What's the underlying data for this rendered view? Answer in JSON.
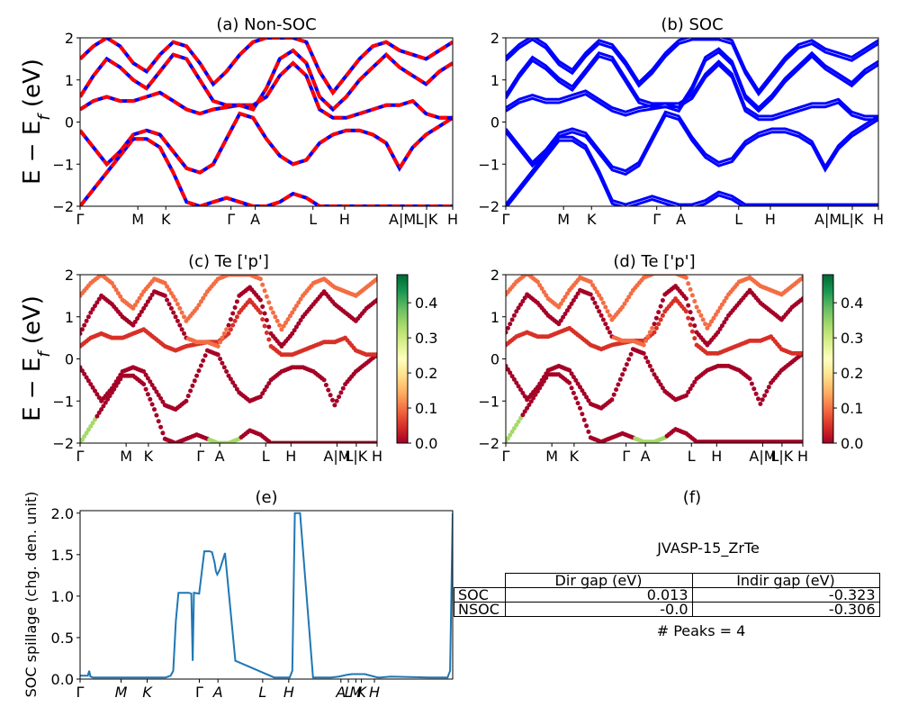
{
  "panels": {
    "a": {
      "title": "(a) Non-SOC"
    },
    "b": {
      "title": "(b) SOC"
    },
    "c": {
      "title": "(c)  Te ['p']"
    },
    "d": {
      "title": "(d) Te ['p']"
    },
    "e": {
      "title": "(e)"
    },
    "f": {
      "title": "(f)"
    }
  },
  "band_ylabel": "E − E_f (eV)",
  "band_yticks": [
    "2",
    "1",
    "0",
    "−1",
    "−2"
  ],
  "kpath_labels": [
    "Γ",
    "M",
    "K",
    "Γ",
    "A",
    "L",
    "H",
    "A|M",
    "L|K",
    "H"
  ],
  "colorbar_ticks": [
    "0.4",
    "0.3",
    "0.2",
    "0.1",
    "0.0"
  ],
  "colors": {
    "nonsoc_red": "#ff0000",
    "nonsoc_blue": "#0000ff",
    "soc_blue": "#0000ff",
    "spillage_line": "#1f77b4"
  },
  "info": {
    "material": "JVASP-15_ZrTe",
    "table_headers": [
      "Dir gap (eV)",
      "Indir gap (eV)"
    ],
    "rows": [
      {
        "label": "SOC",
        "dir": "0.013",
        "indir": "-0.323"
      },
      {
        "label": "NSOC",
        "dir": "-0.0",
        "indir": "-0.306"
      }
    ],
    "peaks": "# Peaks = 4"
  },
  "chart_data": [
    {
      "type": "line",
      "title": "(a) Non-SOC",
      "ylabel": "E − E_f (eV)",
      "ylim": [
        -2,
        2
      ],
      "x_ticks": [
        "Γ",
        "M",
        "K",
        "Γ",
        "A",
        "L",
        "H",
        "A|M",
        "L|K",
        "H"
      ],
      "series_note": "band energies in eV sampled at 29 k-points along the path",
      "series": [
        {
          "values": [
            -2.0,
            -1.6,
            -1.2,
            -0.8,
            -0.4,
            -0.4,
            -0.6,
            -1.2,
            -1.9,
            -2.0,
            -1.9,
            -1.8,
            -1.9,
            -2.0,
            -2.0,
            -1.9,
            -1.7,
            -1.8,
            -2.0,
            -2.0,
            -2.0,
            -2.0,
            -2.0,
            -2.0,
            -2.0,
            -2.0,
            -2.0,
            -2.0,
            -2.0
          ]
        },
        {
          "values": [
            -0.2,
            -0.6,
            -1.0,
            -0.7,
            -0.3,
            -0.2,
            -0.3,
            -0.7,
            -1.1,
            -1.2,
            -1.0,
            -0.4,
            0.2,
            0.1,
            -0.4,
            -0.8,
            -1.0,
            -0.9,
            -0.5,
            -0.3,
            -0.2,
            -0.2,
            -0.3,
            -0.5,
            -1.1,
            -0.6,
            -0.3,
            -0.1,
            0.1
          ]
        },
        {
          "values": [
            0.3,
            0.5,
            0.6,
            0.5,
            0.5,
            0.6,
            0.7,
            0.5,
            0.3,
            0.2,
            0.3,
            0.35,
            0.4,
            0.4,
            0.6,
            1.1,
            1.4,
            1.1,
            0.3,
            0.1,
            0.1,
            0.2,
            0.3,
            0.4,
            0.4,
            0.5,
            0.2,
            0.1,
            0.1
          ]
        },
        {
          "values": [
            0.6,
            1.1,
            1.5,
            1.3,
            1.0,
            0.8,
            1.2,
            1.6,
            1.5,
            1.0,
            0.5,
            0.4,
            0.4,
            0.3,
            0.8,
            1.5,
            1.7,
            1.4,
            0.6,
            0.3,
            0.6,
            1.0,
            1.3,
            1.6,
            1.3,
            1.1,
            0.9,
            1.2,
            1.4
          ]
        },
        {
          "values": [
            1.5,
            1.8,
            2.0,
            1.8,
            1.4,
            1.2,
            1.6,
            1.9,
            1.8,
            1.4,
            0.9,
            1.2,
            1.6,
            1.9,
            2.0,
            2.0,
            2.0,
            1.9,
            1.2,
            0.7,
            1.1,
            1.5,
            1.8,
            1.9,
            1.7,
            1.6,
            1.5,
            1.7,
            1.9
          ]
        }
      ]
    },
    {
      "type": "line",
      "title": "(b) SOC",
      "ylabel": "",
      "ylim": [
        -2,
        2
      ],
      "x_ticks": [
        "Γ",
        "M",
        "K",
        "Γ",
        "A",
        "L",
        "H",
        "A|M",
        "L|K",
        "H"
      ]
    },
    {
      "type": "scatter",
      "title": "(c)  Te ['p']",
      "ylabel": "E − E_f (eV)",
      "ylim": [
        -2,
        2
      ],
      "colorbar_range": [
        0.0,
        0.48
      ]
    },
    {
      "type": "scatter",
      "title": "(d) Te ['p']",
      "ylim": [
        -2,
        2
      ],
      "colorbar_range": [
        0.0,
        0.48
      ]
    },
    {
      "type": "line",
      "title": "(e)",
      "ylabel": "SOC spillage (chg. den. unit)",
      "ylim": [
        0,
        2
      ],
      "y_ticks": [
        "0.0",
        "0.5",
        "1.0",
        "1.5",
        "2.0"
      ],
      "x_ticks": [
        "Γ",
        "M",
        "K",
        "Γ",
        "A",
        "L",
        "H",
        "A",
        "L",
        "M",
        "K",
        "H"
      ],
      "x": [
        0,
        0.3,
        0.35,
        0.4,
        0.5,
        1.5,
        2.5,
        3.3,
        3.5,
        3.6,
        3.7,
        3.8,
        4.2,
        4.3,
        4.35,
        4.4,
        4.6,
        4.8,
        5.0,
        5.1,
        5.2,
        5.25,
        5.3,
        5.4,
        5.6,
        6.0,
        7.5,
        8.05,
        8.1,
        8.2,
        8.3,
        8.4,
        8.5,
        9.0,
        9.5,
        9.6,
        9.7,
        10.0,
        10.3,
        10.5,
        11.0,
        11.5,
        11.6,
        12.0,
        13.5,
        14.2,
        14.3,
        14.4
      ],
      "values": [
        0.04,
        0.04,
        0.1,
        0.03,
        0.02,
        0.02,
        0.02,
        0.02,
        0.04,
        0.1,
        0.7,
        1.04,
        1.04,
        1.03,
        0.22,
        1.04,
        1.03,
        1.54,
        1.54,
        1.53,
        1.4,
        1.3,
        1.26,
        1.32,
        1.52,
        0.22,
        0.02,
        0.02,
        0.02,
        0.1,
        2.0,
        2.0,
        2.0,
        0.02,
        0.02,
        0.02,
        0.02,
        0.03,
        0.05,
        0.06,
        0.06,
        0.02,
        0.02,
        0.03,
        0.02,
        0.02,
        0.1,
        2.0
      ]
    }
  ]
}
